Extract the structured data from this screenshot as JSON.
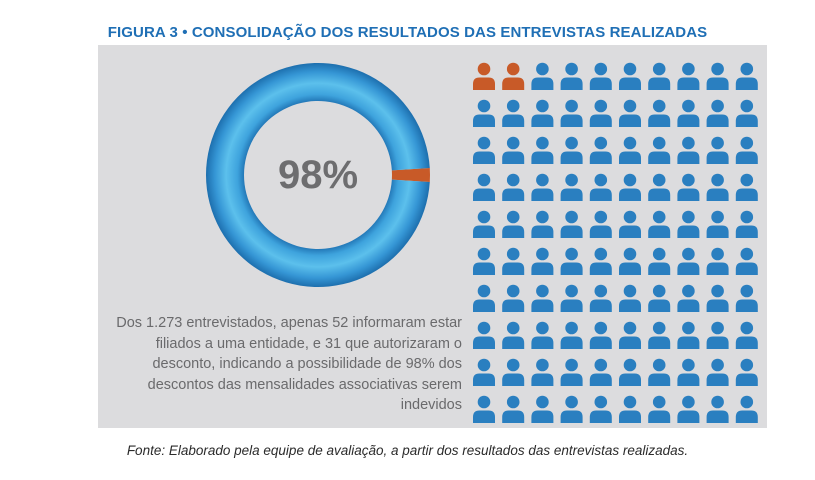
{
  "figure_title": "FIGURA 3 • CONSOLIDAÇÃO DOS RESULTADOS DAS ENTREVISTAS REALIZADAS",
  "description": "Dos 1.273 entrevistados, apenas 52 informaram estar filiados a uma entidade, e 31 que autorizaram o desconto, indicando a possibilidade de 98% dos descontos das mensalidades associativas serem indevidos",
  "source": "Fonte: Elaborado pela equipe de avaliação, a partir dos resultados das entrevistas realizadas.",
  "colors": {
    "blue": "#2a7fc0",
    "blue_light": "#5cc0ec",
    "orange": "#c85a28",
    "panel_bg": "#dcdcde",
    "title": "#1f6fb5"
  },
  "chart_data": [
    {
      "type": "pie",
      "variant": "donut",
      "label": "98%",
      "slices": [
        {
          "value": 98,
          "color": "#2a7fc0"
        },
        {
          "value": 2,
          "color": "#c85a28"
        }
      ]
    },
    {
      "type": "pictogram",
      "icon": "person-icon",
      "total_icons": 100,
      "highlighted_icons": 2,
      "highlight_color": "#c85a28",
      "base_color": "#2a7fc0"
    }
  ]
}
